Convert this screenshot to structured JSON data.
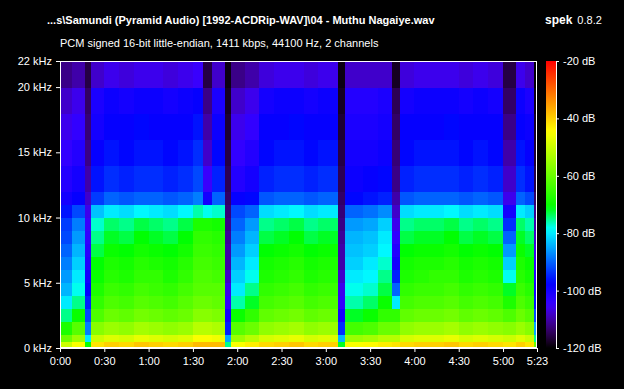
{
  "chart_data": {
    "type": "heatmap",
    "title": "...s\\Samundi (Pyramid Audio) [1992-ACDRip-WAV]\\04 - Muthu Nagaiye.wav",
    "subtitle": "PCM signed 16-bit little-endian, 1411 kbps, 44100 Hz, 2 channels",
    "app": "spek",
    "version": "0.8.2",
    "grid": false,
    "xlim": [
      0,
      323
    ],
    "ylim": [
      0,
      22
    ],
    "xticks": [
      {
        "value": 0,
        "label": "0:00"
      },
      {
        "value": 30,
        "label": "0:30"
      },
      {
        "value": 60,
        "label": "1:00"
      },
      {
        "value": 90,
        "label": "1:30"
      },
      {
        "value": 120,
        "label": "2:00"
      },
      {
        "value": 150,
        "label": "2:30"
      },
      {
        "value": 180,
        "label": "3:00"
      },
      {
        "value": 210,
        "label": "3:30"
      },
      {
        "value": 240,
        "label": "4:00"
      },
      {
        "value": 270,
        "label": "4:30"
      },
      {
        "value": 300,
        "label": "5:00"
      },
      {
        "value": 323,
        "label": "5:23"
      }
    ],
    "yticks": [
      {
        "value": 0,
        "label": "0 kHz"
      },
      {
        "value": 5,
        "label": "5 kHz"
      },
      {
        "value": 10,
        "label": "10 kHz"
      },
      {
        "value": 15,
        "label": "15 kHz"
      },
      {
        "value": 20,
        "label": "20 kHz"
      },
      {
        "value": 22,
        "label": "22 kHz"
      }
    ],
    "colorbar": {
      "range": [
        -120,
        -20
      ],
      "ticks": [
        {
          "value": -20,
          "label": "-20 dB"
        },
        {
          "value": -40,
          "label": "-40 dB"
        },
        {
          "value": -60,
          "label": "-60 dB"
        },
        {
          "value": -80,
          "label": "-80 dB"
        },
        {
          "value": -100,
          "label": "-100 dB"
        },
        {
          "value": -120,
          "label": "-120 dB"
        }
      ]
    },
    "x": [
      0,
      8,
      17,
      21,
      30,
      40,
      50,
      60,
      70,
      80,
      90,
      97,
      103,
      112,
      116,
      125,
      135,
      145,
      155,
      165,
      175,
      188,
      193,
      205,
      215,
      225,
      230,
      240,
      250,
      260,
      270,
      280,
      290,
      300,
      309,
      315,
      321,
      323
    ],
    "y": [
      0,
      0.5,
      1,
      2,
      3,
      4,
      5,
      6,
      7,
      8,
      9,
      10,
      11,
      12,
      14,
      16,
      18,
      20,
      22
    ],
    "values": [
      [
        -50,
        -60,
        -68,
        -75,
        -80,
        -84,
        -86,
        -88,
        -90,
        -92,
        -93,
        -96,
        -100,
        -102,
        -104,
        -106,
        -108,
        -112
      ],
      [
        -45,
        -55,
        -62,
        -70,
        -75,
        -78,
        -80,
        -82,
        -84,
        -86,
        -88,
        -92,
        -98,
        -100,
        -102,
        -104,
        -106,
        -110
      ],
      [
        -70,
        -80,
        -88,
        -92,
        -95,
        -98,
        -100,
        -102,
        -103,
        -104,
        -105,
        -106,
        -108,
        -110,
        -112,
        -113,
        -114,
        -116
      ],
      [
        -42,
        -50,
        -57,
        -63,
        -66,
        -68,
        -70,
        -71,
        -73,
        -75,
        -77,
        -83,
        -93,
        -96,
        -98,
        -100,
        -101,
        -108
      ],
      [
        -40,
        -48,
        -55,
        -60,
        -63,
        -65,
        -67,
        -68,
        -70,
        -72,
        -74,
        -80,
        -90,
        -94,
        -96,
        -98,
        -99,
        -106
      ],
      [
        -41,
        -49,
        -56,
        -61,
        -64,
        -66,
        -68,
        -69,
        -71,
        -73,
        -75,
        -81,
        -91,
        -95,
        -97,
        -98,
        -100,
        -107
      ],
      [
        -39,
        -47,
        -54,
        -59,
        -62,
        -64,
        -66,
        -67,
        -69,
        -71,
        -73,
        -79,
        -90,
        -94,
        -96,
        -97,
        -99,
        -106
      ],
      [
        -40,
        -48,
        -55,
        -60,
        -63,
        -65,
        -66,
        -68,
        -70,
        -72,
        -74,
        -80,
        -90,
        -94,
        -96,
        -98,
        -99,
        -106
      ],
      [
        -41,
        -49,
        -56,
        -61,
        -64,
        -66,
        -68,
        -69,
        -71,
        -73,
        -75,
        -81,
        -91,
        -95,
        -97,
        -98,
        -100,
        -107
      ],
      [
        -40,
        -48,
        -55,
        -60,
        -62,
        -64,
        -66,
        -67,
        -69,
        -71,
        -73,
        -79,
        -90,
        -94,
        -96,
        -98,
        -99,
        -106
      ],
      [
        -38,
        -45,
        -52,
        -57,
        -60,
        -62,
        -63,
        -64,
        -65,
        -66,
        -68,
        -76,
        -88,
        -92,
        -94,
        -96,
        -98,
        -105
      ],
      [
        -38,
        -45,
        -52,
        -57,
        -60,
        -62,
        -63,
        -64,
        -65,
        -66,
        -68,
        -78,
        -100,
        -105,
        -108,
        -110,
        -112,
        -116
      ],
      [
        -38,
        -46,
        -53,
        -58,
        -61,
        -62,
        -64,
        -65,
        -66,
        -67,
        -69,
        -77,
        -90,
        -95,
        -97,
        -99,
        -101,
        -108
      ],
      [
        -75,
        -85,
        -95,
        -100,
        -104,
        -106,
        -108,
        -110,
        -110,
        -111,
        -112,
        -113,
        -114,
        -115,
        -116,
        -117,
        -118,
        -119
      ],
      [
        -45,
        -55,
        -62,
        -70,
        -76,
        -80,
        -82,
        -84,
        -86,
        -88,
        -90,
        -92,
        -98,
        -102,
        -104,
        -106,
        -108,
        -112
      ],
      [
        -43,
        -52,
        -60,
        -66,
        -72,
        -75,
        -78,
        -80,
        -82,
        -84,
        -86,
        -90,
        -97,
        -100,
        -102,
        -104,
        -106,
        -110
      ],
      [
        -41,
        -49,
        -56,
        -61,
        -64,
        -66,
        -68,
        -69,
        -71,
        -73,
        -75,
        -81,
        -91,
        -95,
        -97,
        -98,
        -100,
        -107
      ],
      [
        -40,
        -48,
        -55,
        -60,
        -63,
        -65,
        -67,
        -68,
        -70,
        -72,
        -74,
        -80,
        -90,
        -94,
        -96,
        -98,
        -99,
        -106
      ],
      [
        -39,
        -47,
        -54,
        -59,
        -62,
        -64,
        -66,
        -67,
        -69,
        -71,
        -73,
        -79,
        -90,
        -94,
        -96,
        -97,
        -99,
        -106
      ],
      [
        -41,
        -49,
        -56,
        -61,
        -64,
        -66,
        -68,
        -69,
        -71,
        -73,
        -75,
        -81,
        -91,
        -95,
        -97,
        -98,
        -100,
        -107
      ],
      [
        -40,
        -48,
        -55,
        -60,
        -63,
        -65,
        -67,
        -68,
        -70,
        -72,
        -74,
        -80,
        -90,
        -94,
        -96,
        -98,
        -99,
        -106
      ],
      [
        -72,
        -84,
        -94,
        -100,
        -104,
        -106,
        -108,
        -110,
        -110,
        -111,
        -112,
        -113,
        -114,
        -115,
        -116,
        -117,
        -118,
        -119
      ],
      [
        -45,
        -55,
        -64,
        -72,
        -76,
        -78,
        -80,
        -82,
        -83,
        -84,
        -86,
        -90,
        -97,
        -99,
        -100,
        -101,
        -102,
        -108
      ],
      [
        -44,
        -54,
        -63,
        -70,
        -74,
        -77,
        -79,
        -80,
        -82,
        -83,
        -85,
        -89,
        -96,
        -98,
        -100,
        -101,
        -102,
        -108
      ],
      [
        -43,
        -52,
        -60,
        -66,
        -70,
        -73,
        -75,
        -77,
        -79,
        -80,
        -82,
        -87,
        -95,
        -97,
        -99,
        -100,
        -101,
        -108
      ],
      [
        -42,
        -52,
        -60,
        -66,
        -80,
        -90,
        -95,
        -100,
        -102,
        -104,
        -106,
        -108,
        -110,
        -112,
        -113,
        -114,
        -115,
        -118
      ],
      [
        -41,
        -49,
        -56,
        -61,
        -64,
        -66,
        -68,
        -69,
        -71,
        -73,
        -75,
        -81,
        -91,
        -95,
        -97,
        -98,
        -100,
        -107
      ],
      [
        -40,
        -48,
        -55,
        -60,
        -63,
        -65,
        -67,
        -68,
        -70,
        -72,
        -74,
        -80,
        -90,
        -94,
        -96,
        -98,
        -99,
        -106
      ],
      [
        -40,
        -48,
        -55,
        -60,
        -63,
        -65,
        -66,
        -68,
        -70,
        -72,
        -74,
        -80,
        -90,
        -94,
        -96,
        -98,
        -99,
        -106
      ],
      [
        -39,
        -47,
        -54,
        -59,
        -62,
        -64,
        -66,
        -67,
        -69,
        -71,
        -73,
        -79,
        -90,
        -94,
        -96,
        -97,
        -99,
        -106
      ],
      [
        -41,
        -49,
        -56,
        -61,
        -64,
        -66,
        -68,
        -69,
        -71,
        -73,
        -75,
        -81,
        -91,
        -95,
        -97,
        -98,
        -100,
        -107
      ],
      [
        -40,
        -48,
        -55,
        -60,
        -63,
        -65,
        -67,
        -68,
        -70,
        -72,
        -74,
        -80,
        -90,
        -94,
        -96,
        -98,
        -99,
        -106
      ],
      [
        -41,
        -49,
        -56,
        -61,
        -64,
        -66,
        -68,
        -69,
        -71,
        -73,
        -75,
        -81,
        -91,
        -95,
        -97,
        -98,
        -100,
        -107
      ],
      [
        -42,
        -50,
        -57,
        -63,
        -68,
        -72,
        -78,
        -82,
        -86,
        -90,
        -94,
        -100,
        -106,
        -108,
        -110,
        -112,
        -114,
        -116
      ],
      [
        -40,
        -48,
        -55,
        -60,
        -63,
        -65,
        -67,
        -68,
        -70,
        -72,
        -74,
        -80,
        -90,
        -94,
        -96,
        -98,
        -99,
        -106
      ],
      [
        -42,
        -50,
        -57,
        -62,
        -65,
        -67,
        -69,
        -70,
        -72,
        -74,
        -76,
        -82,
        -92,
        -96,
        -98,
        -99,
        -101,
        -108
      ],
      [
        -60,
        -75,
        -85,
        -92,
        -96,
        -100,
        -102,
        -104,
        -106,
        -108,
        -110,
        -112,
        -114,
        -116,
        -117,
        -118,
        -119,
        -120
      ]
    ]
  }
}
